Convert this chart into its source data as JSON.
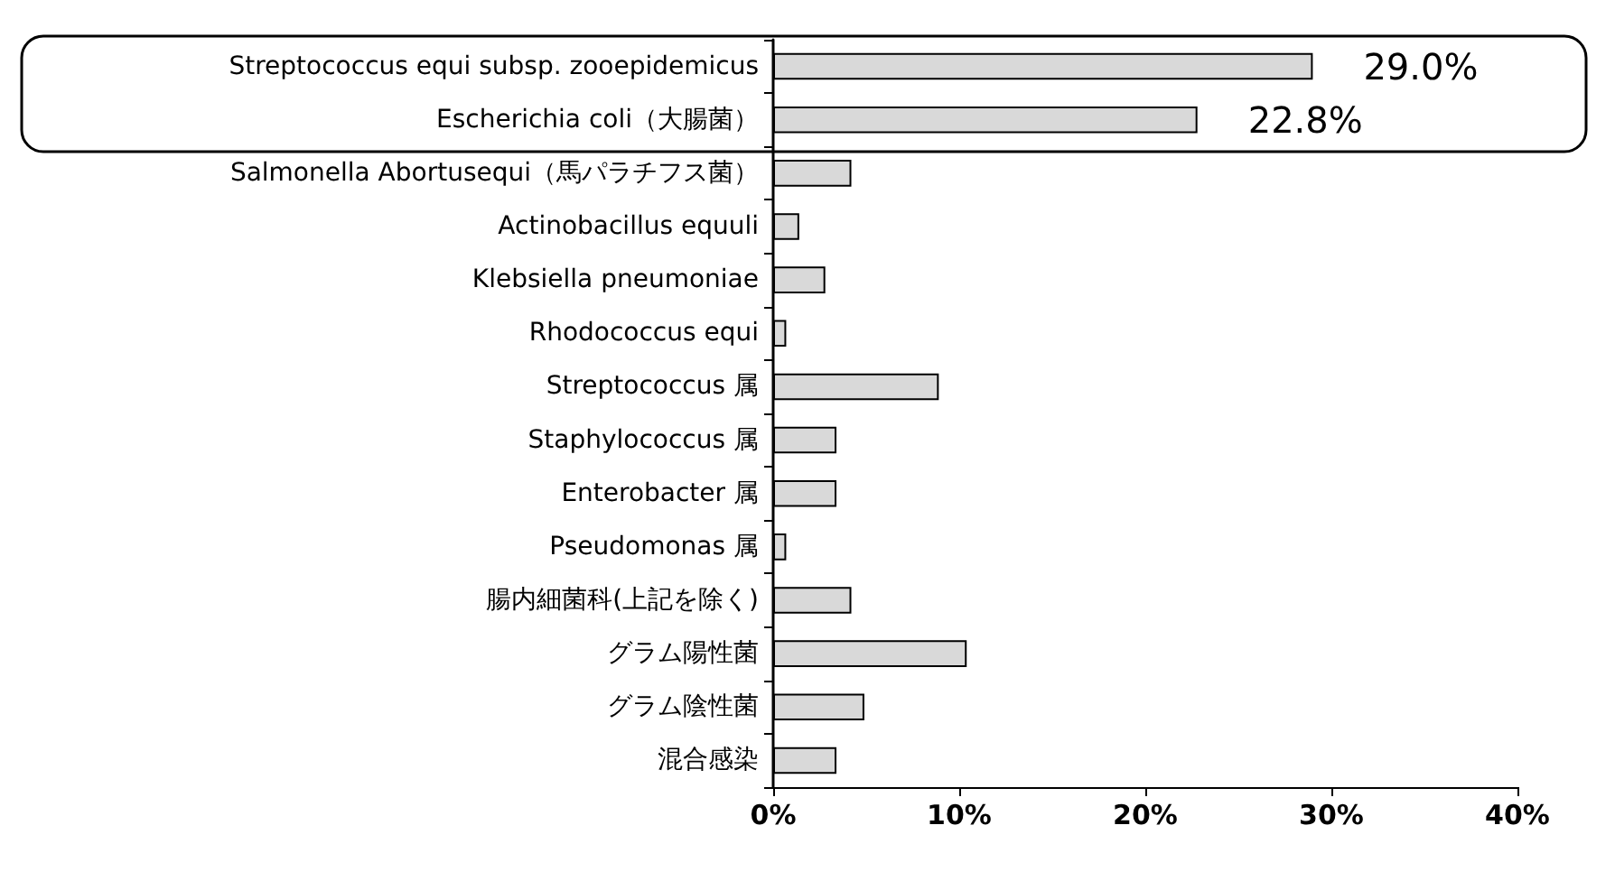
{
  "chart_data": {
    "type": "bar",
    "orientation": "horizontal",
    "categories": [
      "Streptococcus equi subsp. zooepidemicus",
      "Escherichia coli（大腸菌）",
      "Salmonella Abortusequi（馬パラチフス菌）",
      "Actinobacillus equuli",
      "Klebsiella pneumoniae",
      "Rhodococcus equi",
      "Streptococcus 属",
      "Staphylococcus 属",
      "Enterobacter 属",
      "Pseudomonas 属",
      "腸内細菌科(上記を除く)",
      "グラム陽性菌",
      "グラム陰性菌",
      "混合感染"
    ],
    "values": [
      29.0,
      22.8,
      4.2,
      1.4,
      2.8,
      0.7,
      8.9,
      3.4,
      3.4,
      0.7,
      4.2,
      10.4,
      4.9,
      3.4
    ],
    "value_labels": [
      "29.0%",
      "22.8%",
      null,
      null,
      null,
      null,
      null,
      null,
      null,
      null,
      null,
      null,
      null,
      null
    ],
    "color": "#d9d9d9",
    "xlim": [
      0,
      40
    ],
    "xticks": [
      {
        "value": 0,
        "label": "0%"
      },
      {
        "value": 10,
        "label": "10%"
      },
      {
        "value": 20,
        "label": "20%"
      },
      {
        "value": 30,
        "label": "30%"
      },
      {
        "value": 40,
        "label": "40%"
      }
    ],
    "grid": false
  }
}
